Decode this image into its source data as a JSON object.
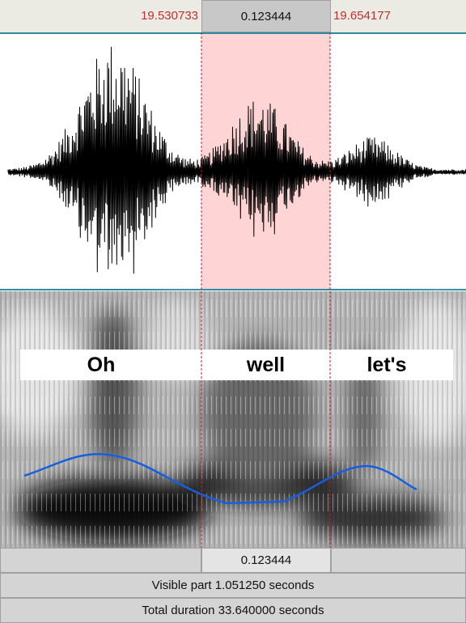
{
  "selection": {
    "start": "19.530733",
    "duration": "0.123444",
    "end": "19.654177"
  },
  "words": [
    "Oh",
    "well",
    "let's"
  ],
  "footer": {
    "selection_duration": "0.123444",
    "visible_part": "Visible part 1.051250 seconds",
    "total_duration": "Total duration 33.640000 seconds"
  }
}
